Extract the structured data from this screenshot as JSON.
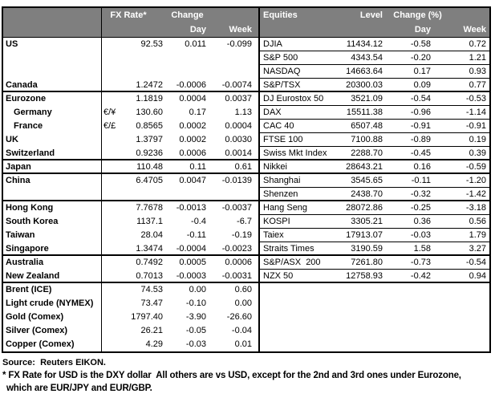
{
  "fx_section": {
    "headers": {
      "rate": "FX Rate*",
      "change": "Change",
      "day": "Day",
      "week": "Week"
    },
    "rows": [
      {
        "label": "US",
        "pair": "",
        "rate": "92.53",
        "day": "0.011",
        "week": "-0.099",
        "indent": false,
        "sep": false
      },
      {
        "label": "",
        "pair": "",
        "rate": "",
        "day": "",
        "week": "",
        "indent": false,
        "sep": false
      },
      {
        "label": "",
        "pair": "",
        "rate": "",
        "day": "",
        "week": "",
        "indent": false,
        "sep": false
      },
      {
        "label": "Canada",
        "pair": "",
        "rate": "1.2472",
        "day": "-0.0006",
        "week": "-0.0074",
        "indent": false,
        "sep": true
      },
      {
        "label": "Eurozone",
        "pair": "",
        "rate": "1.1819",
        "day": "0.0004",
        "week": "0.0037",
        "indent": false,
        "sep": false
      },
      {
        "label": "Germany",
        "pair": "€/¥",
        "rate": "130.60",
        "day": "0.17",
        "week": "1.13",
        "indent": true,
        "sep": false
      },
      {
        "label": "France",
        "pair": "€/£",
        "rate": "0.8565",
        "day": "0.0002",
        "week": "0.0004",
        "indent": true,
        "sep": false
      },
      {
        "label": "UK",
        "pair": "",
        "rate": "1.3797",
        "day": "0.0002",
        "week": "0.0030",
        "indent": false,
        "sep": false
      },
      {
        "label": "Switzerland",
        "pair": "",
        "rate": "0.9236",
        "day": "0.0006",
        "week": "0.0014",
        "indent": false,
        "sep": true
      },
      {
        "label": "Japan",
        "pair": "",
        "rate": "110.48",
        "day": "0.11",
        "week": "0.61",
        "indent": false,
        "sep": true
      },
      {
        "label": "China",
        "pair": "",
        "rate": "6.4705",
        "day": "0.0047",
        "week": "-0.0139",
        "indent": false,
        "sep": false
      },
      {
        "label": "",
        "pair": "",
        "rate": "",
        "day": "",
        "week": "",
        "indent": false,
        "sep": true
      },
      {
        "label": "Hong Kong",
        "pair": "",
        "rate": "7.7678",
        "day": "-0.0013",
        "week": "-0.0037",
        "indent": false,
        "sep": false
      },
      {
        "label": "South Korea",
        "pair": "",
        "rate": "1137.1",
        "day": "-0.4",
        "week": "-6.7",
        "indent": false,
        "sep": false
      },
      {
        "label": "Taiwan",
        "pair": "",
        "rate": "28.04",
        "day": "-0.11",
        "week": "-0.19",
        "indent": false,
        "sep": false
      },
      {
        "label": "Singapore",
        "pair": "",
        "rate": "1.3474",
        "day": "-0.0004",
        "week": "-0.0023",
        "indent": false,
        "sep": true
      },
      {
        "label": "Australia",
        "pair": "",
        "rate": "0.7492",
        "day": "0.0005",
        "week": "0.0006",
        "indent": false,
        "sep": false
      },
      {
        "label": "New Zealand",
        "pair": "",
        "rate": "0.7013",
        "day": "-0.0003",
        "week": "-0.0031",
        "indent": false,
        "sep": true
      },
      {
        "label": "Brent (ICE)",
        "pair": "",
        "rate": "74.53",
        "day": "0.00",
        "week": "0.60",
        "indent": false,
        "sep": false
      },
      {
        "label": "Light crude (NYMEX)",
        "pair": "",
        "rate": "73.47",
        "day": "-0.10",
        "week": "0.00",
        "indent": false,
        "sep": false
      },
      {
        "label": "Gold (Comex)",
        "pair": "",
        "rate": "1797.40",
        "day": "-3.90",
        "week": "-26.60",
        "indent": false,
        "sep": false
      },
      {
        "label": "Silver (Comex)",
        "pair": "",
        "rate": "26.21",
        "day": "-0.05",
        "week": "-0.04",
        "indent": false,
        "sep": false
      },
      {
        "label": "Copper (Comex)",
        "pair": "",
        "rate": "4.29",
        "day": "-0.03",
        "week": "0.01",
        "indent": false,
        "sep": false
      }
    ]
  },
  "equities_section": {
    "headers": {
      "name": "Equities",
      "level": "Level",
      "change": "Change (%)",
      "day": "Day",
      "week": "Week"
    },
    "rows": [
      {
        "name": "DJIA",
        "level": "11434.12",
        "day": "-0.58",
        "week": "0.72",
        "sep": false,
        "blank": false
      },
      {
        "name": "S&P 500",
        "level": "4343.54",
        "day": "-0.20",
        "week": "1.21",
        "sep": false,
        "blank": false
      },
      {
        "name": "NASDAQ",
        "level": "14663.64",
        "day": "0.17",
        "week": "0.93",
        "sep": false,
        "blank": false
      },
      {
        "name": "S&P/TSX",
        "level": "20300.03",
        "day": "0.09",
        "week": "0.77",
        "sep": true,
        "blank": false
      },
      {
        "name": "DJ Eurostox 50",
        "level": "3521.09",
        "day": "-0.54",
        "week": "-0.53",
        "sep": false,
        "blank": false
      },
      {
        "name": "DAX",
        "level": "15511.38",
        "day": "-0.96",
        "week": "-1.14",
        "sep": false,
        "blank": false
      },
      {
        "name": "CAC 40",
        "level": "6507.48",
        "day": "-0.91",
        "week": "-0.91",
        "sep": false,
        "blank": false
      },
      {
        "name": "FTSE 100",
        "level": "7100.88",
        "day": "-0.89",
        "week": "0.19",
        "sep": false,
        "blank": false
      },
      {
        "name": "Swiss Mkt Index",
        "level": "2288.70",
        "day": "-0.45",
        "week": "0.39",
        "sep": true,
        "blank": false
      },
      {
        "name": "Nikkei",
        "level": "28643.21",
        "day": "0.16",
        "week": "-0.59",
        "sep": true,
        "blank": false
      },
      {
        "name": "Shanghai",
        "level": "3545.65",
        "day": "-0.11",
        "week": "-1.20",
        "sep": false,
        "blank": false
      },
      {
        "name": "Shenzen",
        "level": "2438.70",
        "day": "-0.32",
        "week": "-1.42",
        "sep": true,
        "blank": false
      },
      {
        "name": "Hang Seng",
        "level": "28072.86",
        "day": "-0.25",
        "week": "-3.18",
        "sep": false,
        "blank": false
      },
      {
        "name": "KOSPI",
        "level": "3305.21",
        "day": "0.36",
        "week": "0.56",
        "sep": false,
        "blank": false
      },
      {
        "name": "Taiex",
        "level": "17913.07",
        "day": "-0.03",
        "week": "1.79",
        "sep": false,
        "blank": false
      },
      {
        "name": "Straits Times",
        "level": "3190.59",
        "day": "1.58",
        "week": "3.27",
        "sep": true,
        "blank": false
      },
      {
        "name": "S&P/ASX  200",
        "level": "7261.80",
        "day": "-0.73",
        "week": "-0.54",
        "sep": false,
        "blank": false
      },
      {
        "name": "NZX 50",
        "level": "12758.93",
        "day": "-0.42",
        "week": "0.94",
        "sep": true,
        "blank": false
      },
      {
        "name": "",
        "level": "",
        "day": "",
        "week": "",
        "sep": false,
        "blank": true
      },
      {
        "name": "",
        "level": "",
        "day": "",
        "week": "",
        "sep": false,
        "blank": true
      },
      {
        "name": "",
        "level": "",
        "day": "",
        "week": "",
        "sep": false,
        "blank": true
      },
      {
        "name": "",
        "level": "",
        "day": "",
        "week": "",
        "sep": false,
        "blank": true
      },
      {
        "name": "",
        "level": "",
        "day": "",
        "week": "",
        "sep": false,
        "blank": true
      }
    ]
  },
  "footer": {
    "source": "Source:  Reuters EIKON.",
    "note_line1": "* FX Rate for USD is the DXY dollar  All others are vs USD, except for the 2nd and 3rd ones under Eurozone,",
    "note_line2": "which are EUR/JPY and EUR/GBP."
  },
  "colors": {
    "header_bg": "#7f7f7f",
    "header_text": "#ffffff",
    "border": "#000000"
  }
}
